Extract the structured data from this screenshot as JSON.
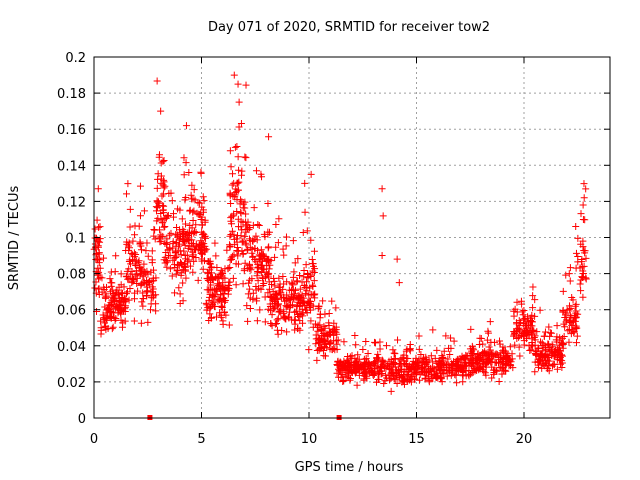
{
  "chart_data": {
    "type": "scatter",
    "title": "Day 071 of 2020, SRMTID for receiver tow2",
    "xlabel": "GPS time / hours",
    "ylabel": "SRMTID / TECUs",
    "xlim": [
      0,
      24
    ],
    "ylim": [
      0,
      0.2
    ],
    "xticks": [
      0,
      5,
      10,
      15,
      20
    ],
    "yticks": [
      0,
      0.02,
      0.04,
      0.06,
      0.08,
      0.1,
      0.12,
      0.14,
      0.16,
      0.18,
      0.2
    ],
    "ytick_labels": [
      "0",
      "0.02",
      "0.04",
      "0.06",
      "0.08",
      "0.1",
      "0.12",
      "0.14",
      "0.16",
      "0.18",
      "0.2"
    ],
    "grid": true,
    "marker": "+",
    "marker_color": "#ff0000",
    "zero_markers_x": [
      2.6,
      11.4
    ],
    "series": [
      {
        "name": "SRMTID",
        "color": "#ff0000",
        "segments": [
          {
            "x0": 0.0,
            "x1": 0.3,
            "y_mean": 0.085,
            "y_spread": 0.028,
            "count": 40
          },
          {
            "x0": 0.3,
            "x1": 1.5,
            "y_mean": 0.062,
            "y_spread": 0.018,
            "count": 120
          },
          {
            "x0": 1.5,
            "x1": 2.2,
            "y_mean": 0.085,
            "y_spread": 0.03,
            "count": 70
          },
          {
            "x0": 2.2,
            "x1": 2.9,
            "y_mean": 0.075,
            "y_spread": 0.03,
            "count": 60
          },
          {
            "x0": 2.9,
            "x1": 3.3,
            "y_mean": 0.12,
            "y_spread": 0.04,
            "count": 50
          },
          {
            "x0": 3.3,
            "x1": 4.3,
            "y_mean": 0.09,
            "y_spread": 0.035,
            "count": 110
          },
          {
            "x0": 4.3,
            "x1": 5.2,
            "y_mean": 0.1,
            "y_spread": 0.03,
            "count": 100
          },
          {
            "x0": 5.2,
            "x1": 6.3,
            "y_mean": 0.07,
            "y_spread": 0.022,
            "count": 120
          },
          {
            "x0": 6.3,
            "x1": 7.1,
            "y_mean": 0.11,
            "y_spread": 0.05,
            "count": 100
          },
          {
            "x0": 7.1,
            "x1": 8.2,
            "y_mean": 0.085,
            "y_spread": 0.035,
            "count": 120
          },
          {
            "x0": 8.2,
            "x1": 9.5,
            "y_mean": 0.065,
            "y_spread": 0.025,
            "count": 130
          },
          {
            "x0": 9.5,
            "x1": 10.3,
            "y_mean": 0.07,
            "y_spread": 0.03,
            "count": 80
          },
          {
            "x0": 10.3,
            "x1": 11.3,
            "y_mean": 0.045,
            "y_spread": 0.015,
            "count": 90
          },
          {
            "x0": 11.3,
            "x1": 13.0,
            "y_mean": 0.027,
            "y_spread": 0.01,
            "count": 150
          },
          {
            "x0": 13.0,
            "x1": 15.0,
            "y_mean": 0.027,
            "y_spread": 0.011,
            "count": 170
          },
          {
            "x0": 15.0,
            "x1": 17.5,
            "y_mean": 0.028,
            "y_spread": 0.011,
            "count": 200
          },
          {
            "x0": 17.5,
            "x1": 19.5,
            "y_mean": 0.032,
            "y_spread": 0.012,
            "count": 170
          },
          {
            "x0": 19.5,
            "x1": 20.5,
            "y_mean": 0.05,
            "y_spread": 0.018,
            "count": 90
          },
          {
            "x0": 20.5,
            "x1": 21.8,
            "y_mean": 0.035,
            "y_spread": 0.013,
            "count": 120
          },
          {
            "x0": 21.8,
            "x1": 22.5,
            "y_mean": 0.055,
            "y_spread": 0.022,
            "count": 60
          },
          {
            "x0": 22.5,
            "x1": 22.9,
            "y_mean": 0.09,
            "y_spread": 0.03,
            "count": 30
          }
        ],
        "outliers": [
          {
            "x": 6.7,
            "y": 0.185
          },
          {
            "x": 6.75,
            "y": 0.175
          },
          {
            "x": 3.1,
            "y": 0.17
          },
          {
            "x": 4.3,
            "y": 0.162
          },
          {
            "x": 13.4,
            "y": 0.127
          },
          {
            "x": 13.45,
            "y": 0.112
          },
          {
            "x": 13.4,
            "y": 0.09
          },
          {
            "x": 14.1,
            "y": 0.088
          },
          {
            "x": 14.2,
            "y": 0.075
          },
          {
            "x": 22.8,
            "y": 0.122
          },
          {
            "x": 22.75,
            "y": 0.118
          },
          {
            "x": 0.2,
            "y": 0.127
          },
          {
            "x": 10.1,
            "y": 0.135
          },
          {
            "x": 9.8,
            "y": 0.13
          }
        ]
      }
    ]
  }
}
